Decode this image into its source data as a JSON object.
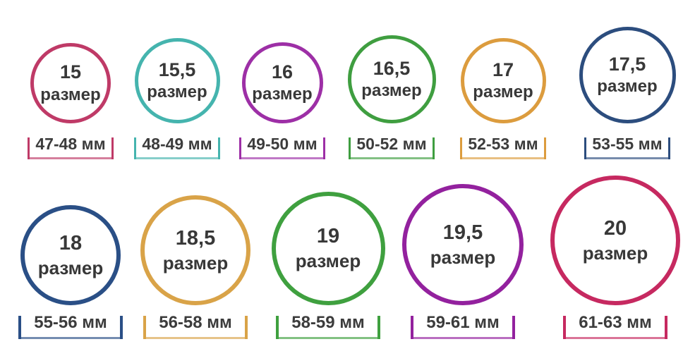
{
  "page": {
    "background": "#ffffff",
    "text_color": "#3c3c3c",
    "language": "ru"
  },
  "size_word": "размер",
  "rows": [
    {
      "items": [
        {
          "size": "15",
          "range": "47-48 мм",
          "color": "#bf3a67",
          "diameter": 114
        },
        {
          "size": "15,5",
          "range": "48-49 мм",
          "color": "#45b4ae",
          "diameter": 121
        },
        {
          "size": "16",
          "range": "49-50 мм",
          "color": "#9d2fa6",
          "diameter": 115
        },
        {
          "size": "16,5",
          "range": "50-52 мм",
          "color": "#3f9e40",
          "diameter": 125
        },
        {
          "size": "17",
          "range": "52-53 мм",
          "color": "#dc9c3e",
          "diameter": 121
        },
        {
          "size": "17,5",
          "range": "53-55 мм",
          "color": "#2c4d7e",
          "diameter": 137
        }
      ]
    },
    {
      "items": [
        {
          "size": "18",
          "range": "55-56 мм",
          "color": "#2a4f86",
          "diameter": 142
        },
        {
          "size": "18,5",
          "range": "56-58 мм",
          "color": "#d9a348",
          "diameter": 156
        },
        {
          "size": "19",
          "range": "58-59 мм",
          "color": "#3fa03f",
          "diameter": 161
        },
        {
          "size": "19,5",
          "range": "59-61 мм",
          "color": "#93219e",
          "diameter": 172
        },
        {
          "size": "20",
          "range": "61-63 мм",
          "color": "#c62960",
          "diameter": 184
        }
      ]
    }
  ]
}
